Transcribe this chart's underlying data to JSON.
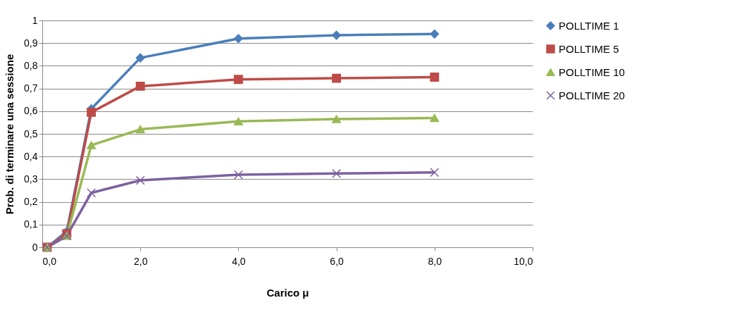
{
  "chart_data": {
    "type": "line",
    "xlabel": "Carico μ",
    "ylabel": "Prob. di terminare una sessione",
    "x": [
      0.1,
      0.5,
      1,
      2,
      4,
      6,
      8
    ],
    "series": [
      {
        "name": "POLLTIME 1",
        "color": "#4a7ebb",
        "marker": "diamond",
        "values": [
          0,
          0.07,
          0.61,
          0.835,
          0.92,
          0.935,
          0.94
        ]
      },
      {
        "name": "POLLTIME 5",
        "color": "#be4b48",
        "marker": "square",
        "values": [
          0,
          0.06,
          0.595,
          0.71,
          0.74,
          0.745,
          0.75
        ]
      },
      {
        "name": "POLLTIME 10",
        "color": "#98b954",
        "marker": "triangle",
        "values": [
          0,
          0.05,
          0.45,
          0.52,
          0.555,
          0.565,
          0.57
        ]
      },
      {
        "name": "POLLTIME 20",
        "color": "#7d60a0",
        "marker": "cross",
        "values": [
          0,
          0.05,
          0.24,
          0.295,
          0.32,
          0.325,
          0.33
        ]
      }
    ],
    "xlim": [
      0,
      10
    ],
    "xticks": [
      {
        "value": 0,
        "label": "0,0"
      },
      {
        "value": 2,
        "label": "2,0"
      },
      {
        "value": 4,
        "label": "4,0"
      },
      {
        "value": 6,
        "label": "6,0"
      },
      {
        "value": 8,
        "label": "8,0"
      },
      {
        "value": 10,
        "label": "10,0"
      }
    ],
    "ylim": [
      0,
      1
    ],
    "yticks": [
      0,
      {
        "value": 0.1,
        "label": "0,1"
      },
      {
        "value": 0.2,
        "label": "0,2"
      },
      {
        "value": 0.3,
        "label": "0,3"
      },
      {
        "value": 0.4,
        "label": "0,4"
      },
      {
        "value": 0.5,
        "label": "0,5"
      },
      {
        "value": 0.6,
        "label": "0,6"
      },
      {
        "value": 0.7,
        "label": "0,7"
      },
      {
        "value": 0.8,
        "label": "0,8"
      },
      {
        "value": 0.9,
        "label": "0,9"
      },
      1
    ],
    "grid": "y",
    "legend": "right"
  }
}
